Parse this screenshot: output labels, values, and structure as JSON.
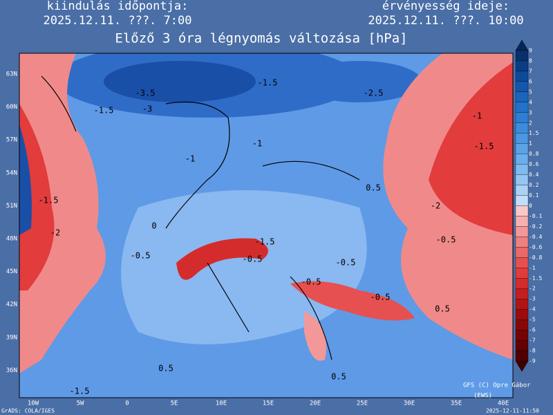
{
  "header": {
    "left_label": "kiindulás időpontja:",
    "left_time": "2025.12.11. ???. 7:00",
    "right_label": "érvényesség ideje:",
    "right_time": "2025.12.11. ???. 10:00",
    "title": "Előző 3 óra légnyomás változása [hPa]"
  },
  "map": {
    "lat_labels": [
      "63N",
      "60N",
      "57N",
      "54N",
      "51N",
      "48N",
      "45N",
      "42N",
      "39N",
      "36N"
    ],
    "lon_labels": [
      "10W",
      "5W",
      "0",
      "5E",
      "10E",
      "15E",
      "20E",
      "25E",
      "30E",
      "35E",
      "40E"
    ],
    "contour_labels": [
      "-3.5",
      "-3",
      "-1.5",
      "-1.5",
      "-2.5",
      "-1",
      "-1.5",
      "-2",
      "-0.5",
      "-1",
      "-1",
      "0.5",
      "0",
      "-0.5",
      "-1.5",
      "-0.5",
      "-0.5",
      "0.5",
      "0.5",
      "-1.5",
      "0.5",
      "-2",
      "-1.5",
      "-0.5",
      "-0.5"
    ]
  },
  "colorbar": {
    "labels": [
      "9",
      "8",
      "7",
      "6",
      "5",
      "4",
      "3",
      "2",
      "1.5",
      "1",
      "0.8",
      "0.6",
      "0.4",
      "0.2",
      "0.1",
      "0",
      "-0.1",
      "-0.2",
      "-0.4",
      "-0.6",
      "-0.8",
      "-1",
      "-1.5",
      "-2",
      "-3",
      "-4",
      "-5",
      "-6",
      "-7",
      "-8",
      "-9"
    ],
    "colors": [
      "#08306b",
      "#0a3d85",
      "#0d4a9a",
      "#1257ac",
      "#1a64bc",
      "#2371c9",
      "#2e7fd4",
      "#3b8ddc",
      "#4a98e2",
      "#5aa3e7",
      "#6caeeb",
      "#80baef",
      "#95c6f2",
      "#abd2f5",
      "#c2def8",
      "#f8c8c8",
      "#f5b0b0",
      "#f29898",
      "#ee8080",
      "#ea6868",
      "#e65050",
      "#e03c3c",
      "#d42c2c",
      "#c41e1e",
      "#b01414",
      "#9c0c0c",
      "#880808",
      "#740404",
      "#620202",
      "#500000"
    ],
    "top_color": "#06265a",
    "bottom_color": "#400000"
  },
  "footer": {
    "credit": "GFS (C) Opre Gábor",
    "credit2": "(EWS)",
    "software": "GrADS: COLA/IGES",
    "timestamp": "2025-12-11-11:50"
  }
}
